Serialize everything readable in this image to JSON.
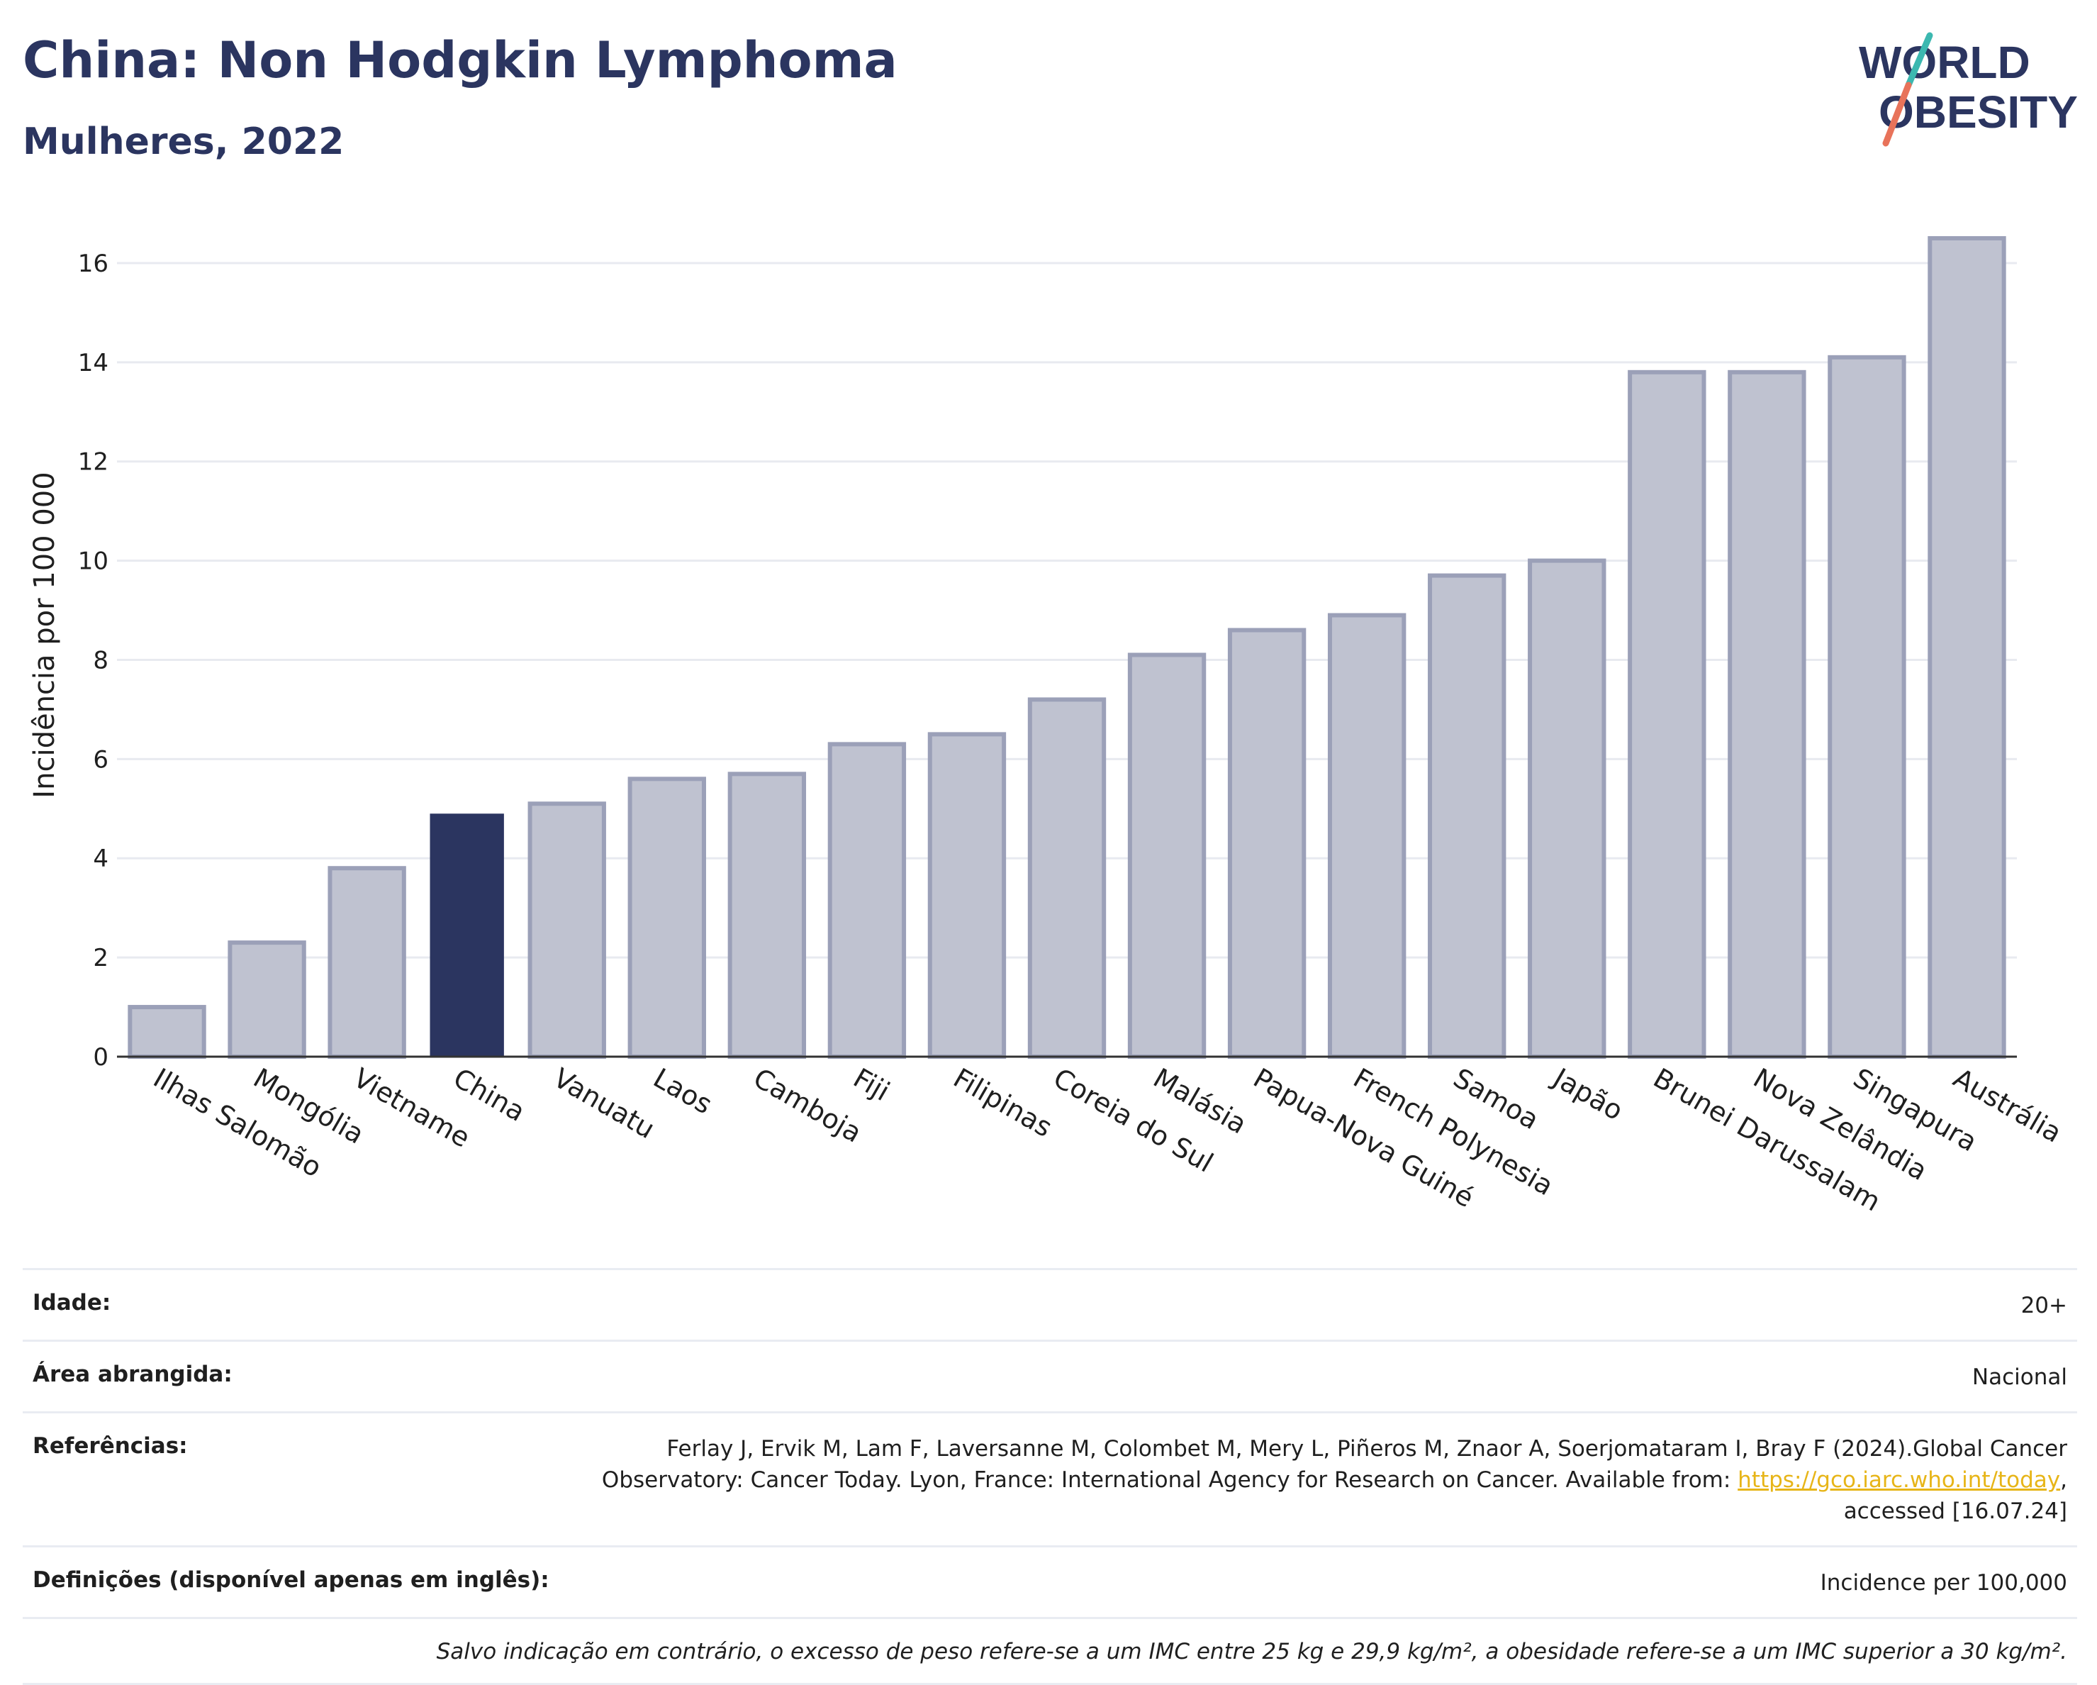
{
  "header": {
    "title": "China: Non Hodgkin Lymphoma",
    "subtitle": "Mulheres, 2022"
  },
  "logo": {
    "line1": "WORLD",
    "line2": "OBESITY",
    "colors": [
      "#2b3560",
      "#3cb8b0",
      "#e8735a"
    ]
  },
  "chart_data": {
    "type": "bar",
    "title": "China: Non Hodgkin Lymphoma",
    "subtitle": "Mulheres, 2022",
    "xlabel": "",
    "ylabel": "Incidência por 100 000",
    "ylim": [
      0,
      17
    ],
    "yticks": [
      0,
      2,
      4,
      6,
      8,
      10,
      12,
      14,
      16
    ],
    "grid": true,
    "highlight": "China",
    "highlight_color": "#2b3560",
    "bar_color": "#bfc2d0",
    "bar_edge_color": "#9ba0b8",
    "categories": [
      "Ilhas Salomão",
      "Mongólia",
      "Vietname",
      "China",
      "Vanuatu",
      "Laos",
      "Camboja",
      "Fiji",
      "Filipinas",
      "Coreia do Sul",
      "Malásia",
      "Papua-Nova Guiné",
      "French Polynesia",
      "Samoa",
      "Japão",
      "Brunei Darussalam",
      "Nova Zelândia",
      "Singapura",
      "Austrália"
    ],
    "values": [
      1.0,
      2.3,
      3.8,
      4.9,
      5.1,
      5.6,
      5.7,
      6.3,
      6.5,
      7.2,
      8.1,
      8.6,
      8.9,
      9.7,
      10.0,
      13.8,
      13.8,
      14.1,
      16.5
    ]
  },
  "info": {
    "age_label": "Idade:",
    "age_value": "20+",
    "area_label": "Área abrangida:",
    "area_value": "Nacional",
    "ref_label": "Referências:",
    "ref_line1": "Ferlay J, Ervik M, Lam F, Laversanne M, Colombet M, Mery L, Piñeros M, Znaor A, Soerjomataram I, Bray F (2024).Global Cancer",
    "ref_line2": "Observatory: Cancer Today. Lyon, France: International Agency for Research on Cancer. Available from: ",
    "ref_link": "https://gco.iarc.who.int/today",
    "ref_line2_end": ",",
    "ref_line3": "accessed [16.07.24]",
    "def_label": "Definições (disponível apenas em inglês):",
    "def_value": "Incidence per 100,000",
    "note": "Salvo indicação em contrário, o excesso de peso refere-se a um IMC entre 25 kg e 29,9 kg/m², a obesidade refere-se a um IMC superior a 30 kg/m²."
  }
}
